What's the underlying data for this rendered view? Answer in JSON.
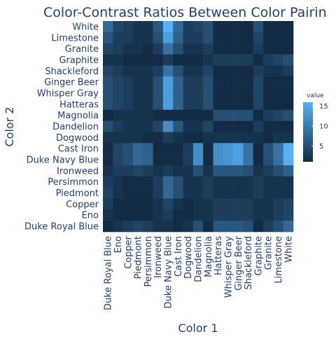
{
  "chart_data": {
    "type": "heatmap",
    "title": "Color-Contrast Ratios Between Color Pairin",
    "xlabel": "Color 1",
    "ylabel": "Color 2",
    "x_categories": [
      "Duke Royal Blue",
      "Eno",
      "Copper",
      "Piedmont",
      "Persimmon",
      "Ironweed",
      "Duke Navy Blue",
      "Cast Iron",
      "Dogwood",
      "Dandelion",
      "Magnolia",
      "Hatteras",
      "Whisper Gray",
      "Ginger Beer",
      "Shackleford",
      "Graphite",
      "Granite",
      "Limestone",
      "White"
    ],
    "y_categories": [
      "White",
      "Limestone",
      "Granite",
      "Graphite",
      "Shackleford",
      "Ginger Beer",
      "Whisper Gray",
      "Hatteras",
      "Magnolia",
      "Dandelion",
      "Dogwood",
      "Cast Iron",
      "Duke Navy Blue",
      "Ironweed",
      "Persimmon",
      "Piedmont",
      "Copper",
      "Eno",
      "Duke Royal Blue"
    ],
    "values": [
      [
        8,
        4,
        3,
        2,
        2,
        6,
        16,
        8,
        3,
        4,
        5,
        1,
        1,
        1,
        1,
        5,
        1,
        1,
        1
      ],
      [
        6,
        3,
        3,
        2,
        2,
        5,
        14,
        7,
        3,
        3,
        5,
        1,
        1,
        1,
        1,
        4,
        1,
        1,
        1
      ],
      [
        4,
        3,
        2,
        2,
        1,
        3,
        9,
        5,
        2,
        2,
        3,
        1,
        1,
        1,
        1,
        3,
        1,
        1,
        1
      ],
      [
        2,
        2,
        1,
        1,
        1,
        1,
        3,
        1,
        1,
        1,
        2,
        3,
        3,
        3,
        3,
        1,
        3,
        4,
        5
      ],
      [
        4,
        3,
        2,
        2,
        2,
        3,
        9,
        5,
        2,
        2,
        4,
        1,
        1,
        1,
        1,
        3,
        2,
        2,
        3
      ],
      [
        5,
        4,
        3,
        2,
        2,
        5,
        14,
        7,
        3,
        3,
        5,
        1,
        1,
        1,
        1,
        4,
        1,
        1,
        1
      ],
      [
        5,
        4,
        3,
        2,
        2,
        5,
        14,
        7,
        3,
        3,
        5,
        1,
        1,
        1,
        1,
        4,
        1,
        1,
        1
      ],
      [
        5,
        4,
        3,
        2,
        2,
        5,
        14,
        7,
        3,
        3,
        5,
        1,
        1,
        1,
        1,
        4,
        1,
        1,
        1
      ],
      [
        1,
        2,
        2,
        2,
        2,
        1,
        1,
        1,
        1,
        1,
        1,
        5,
        5,
        5,
        5,
        1,
        3,
        4,
        5
      ],
      [
        5,
        3,
        2,
        2,
        2,
        4,
        12,
        6,
        2,
        2,
        4,
        1,
        1,
        1,
        1,
        3,
        1,
        1,
        1
      ],
      [
        2,
        2,
        2,
        2,
        1,
        1,
        3,
        2,
        1,
        1,
        2,
        2,
        2,
        2,
        2,
        2,
        1,
        2,
        2
      ],
      [
        1,
        4,
        5,
        8,
        7,
        1,
        1,
        1,
        3,
        12,
        1,
        12,
        13,
        14,
        9,
        1,
        5,
        9,
        16
      ],
      [
        1,
        4,
        5,
        8,
        7,
        1,
        1,
        1,
        3,
        12,
        1,
        12,
        13,
        14,
        9,
        1,
        5,
        9,
        16
      ],
      [
        2,
        3,
        3,
        4,
        3,
        2,
        3,
        2,
        2,
        5,
        2,
        6,
        6,
        6,
        5,
        2,
        3,
        5,
        7
      ],
      [
        3,
        2,
        1,
        1,
        1,
        3,
        8,
        5,
        2,
        2,
        3,
        2,
        2,
        2,
        2,
        3,
        2,
        2,
        2
      ],
      [
        4,
        2,
        1,
        1,
        1,
        3,
        8,
        5,
        2,
        2,
        3,
        2,
        2,
        2,
        2,
        3,
        2,
        2,
        2
      ],
      [
        3,
        1,
        1,
        1,
        1,
        2,
        4,
        2,
        1,
        2,
        2,
        3,
        3,
        3,
        3,
        2,
        2,
        3,
        4
      ],
      [
        2,
        1,
        1,
        1,
        1,
        2,
        3,
        1,
        1,
        2,
        2,
        3,
        3,
        3,
        3,
        2,
        2,
        3,
        4
      ],
      [
        1,
        2,
        3,
        4,
        3,
        2,
        2,
        1,
        2,
        5,
        1,
        6,
        6,
        6,
        5,
        1,
        3,
        5,
        8
      ]
    ],
    "colorbar": {
      "title": "value",
      "range": [
        1,
        16
      ],
      "ticks": [
        5,
        10,
        15
      ],
      "colors": [
        "#132b43",
        "#56b1f7"
      ]
    }
  }
}
